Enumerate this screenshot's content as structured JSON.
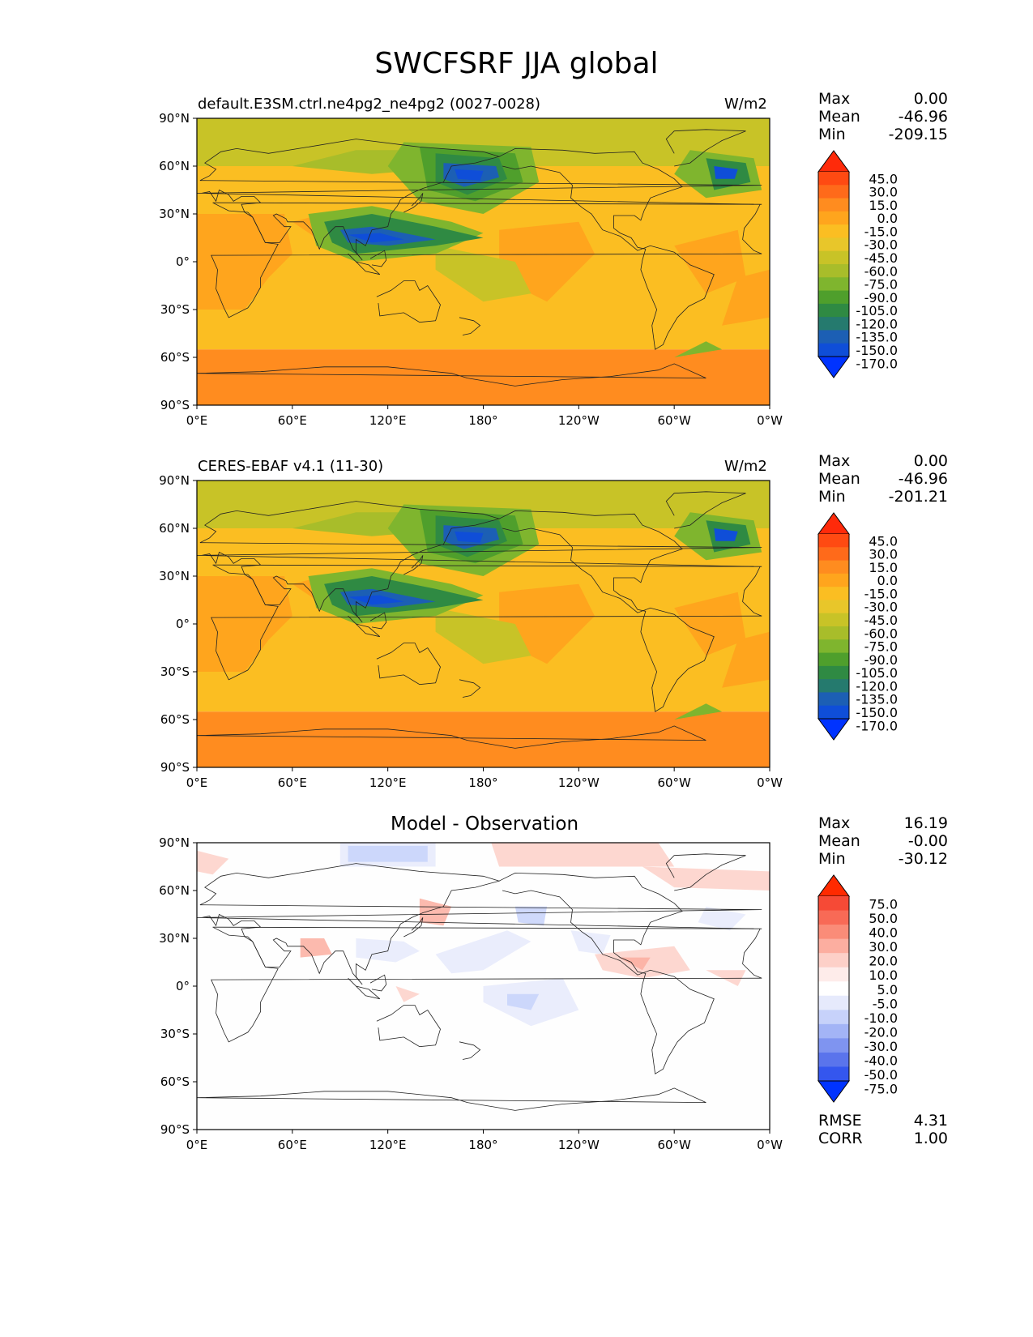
{
  "title": "SWCFSRF JJA global",
  "axis_ticks": {
    "lat": [
      "90°N",
      "60°N",
      "30°N",
      "0°",
      "30°S",
      "60°S",
      "90°S"
    ],
    "lon": [
      "0°E",
      "60°E",
      "120°E",
      "180°",
      "120°W",
      "60°W",
      "0°W"
    ]
  },
  "panels": [
    {
      "left_title": "default.E3SM.ctrl.ne4pg2_ne4pg2 (0027-0028)",
      "center_title": "",
      "units": "W/m2",
      "stats": {
        "labels": [
          "Max",
          "Mean",
          "Min"
        ],
        "values": [
          "0.00",
          "-46.96",
          "-209.15"
        ]
      },
      "colorbar": {
        "labels": [
          "45.0",
          "30.0",
          "15.0",
          "0.0",
          "-15.0",
          "-30.0",
          "-45.0",
          "-60.0",
          "-75.0",
          "-90.0",
          "-105.0",
          "-120.0",
          "-135.0",
          "-150.0",
          "-170.0"
        ],
        "colors": [
          "#ff2a0a",
          "#ff4a12",
          "#ff6a1a",
          "#ff8c1f",
          "#ffa51d",
          "#fbbe22",
          "#e8c62a",
          "#c8c327",
          "#a8bd2a",
          "#7fb52e",
          "#4f9f2c",
          "#2f8a43",
          "#257a6e",
          "#1c5fb4",
          "#0f4ed8",
          "#0033ff"
        ]
      }
    },
    {
      "left_title": "CERES-EBAF v4.1 (11-30)",
      "center_title": "",
      "units": "W/m2",
      "stats": {
        "labels": [
          "Max",
          "Mean",
          "Min"
        ],
        "values": [
          "0.00",
          "-46.96",
          "-201.21"
        ]
      },
      "colorbar": {
        "labels": [
          "45.0",
          "30.0",
          "15.0",
          "0.0",
          "-15.0",
          "-30.0",
          "-45.0",
          "-60.0",
          "-75.0",
          "-90.0",
          "-105.0",
          "-120.0",
          "-135.0",
          "-150.0",
          "-170.0"
        ],
        "colors": [
          "#ff2a0a",
          "#ff4a12",
          "#ff6a1a",
          "#ff8c1f",
          "#ffa51d",
          "#fbbe22",
          "#e8c62a",
          "#c8c327",
          "#a8bd2a",
          "#7fb52e",
          "#4f9f2c",
          "#2f8a43",
          "#257a6e",
          "#1c5fb4",
          "#0f4ed8",
          "#0033ff"
        ]
      }
    },
    {
      "left_title": "",
      "center_title": "Model - Observation",
      "units": "",
      "stats": {
        "labels": [
          "Max",
          "Mean",
          "Min"
        ],
        "values": [
          "16.19",
          "-0.00",
          "-30.12"
        ]
      },
      "footer_stats": {
        "labels": [
          "RMSE",
          "CORR"
        ],
        "values": [
          "4.31",
          "1.00"
        ]
      },
      "colorbar": {
        "labels": [
          "75.0",
          "50.0",
          "40.0",
          "30.0",
          "20.0",
          "10.0",
          "5.0",
          "-5.0",
          "-10.0",
          "-20.0",
          "-30.0",
          "-40.0",
          "-50.0",
          "-75.0"
        ],
        "colors": [
          "#ff2a00",
          "#f64a36",
          "#f86a56",
          "#fa8c78",
          "#fcaea0",
          "#fdd0c8",
          "#feecea",
          "#ffffff",
          "#e6eafc",
          "#c7d2fa",
          "#a3b4f6",
          "#7f94f0",
          "#5a74ec",
          "#3456ee",
          "#0033ff"
        ]
      }
    }
  ],
  "chart_data": [
    {
      "type": "heatmap",
      "title": "default.E3SM.ctrl.ne4pg2_ne4pg2 (0027-0028)",
      "units": "W/m2",
      "xlim": [
        0,
        360
      ],
      "ylim": [
        -90,
        90
      ],
      "levels": [
        -170,
        -150,
        -135,
        -120,
        -105,
        -90,
        -75,
        -60,
        -45,
        -30,
        -15,
        0,
        15,
        30,
        45
      ],
      "stats": {
        "max": 0.0,
        "mean": -46.96,
        "min": -209.15
      }
    },
    {
      "type": "heatmap",
      "title": "CERES-EBAF v4.1 (11-30)",
      "units": "W/m2",
      "xlim": [
        0,
        360
      ],
      "ylim": [
        -90,
        90
      ],
      "levels": [
        -170,
        -150,
        -135,
        -120,
        -105,
        -90,
        -75,
        -60,
        -45,
        -30,
        -15,
        0,
        15,
        30,
        45
      ],
      "stats": {
        "max": 0.0,
        "mean": -46.96,
        "min": -201.21
      }
    },
    {
      "type": "heatmap",
      "title": "Model - Observation",
      "xlim": [
        0,
        360
      ],
      "ylim": [
        -90,
        90
      ],
      "levels": [
        -75,
        -50,
        -40,
        -30,
        -20,
        -10,
        -5,
        5,
        10,
        20,
        30,
        40,
        50,
        75
      ],
      "stats": {
        "max": 16.19,
        "mean": -0.0,
        "min": -30.12,
        "rmse": 4.31,
        "corr": 1.0
      }
    }
  ]
}
